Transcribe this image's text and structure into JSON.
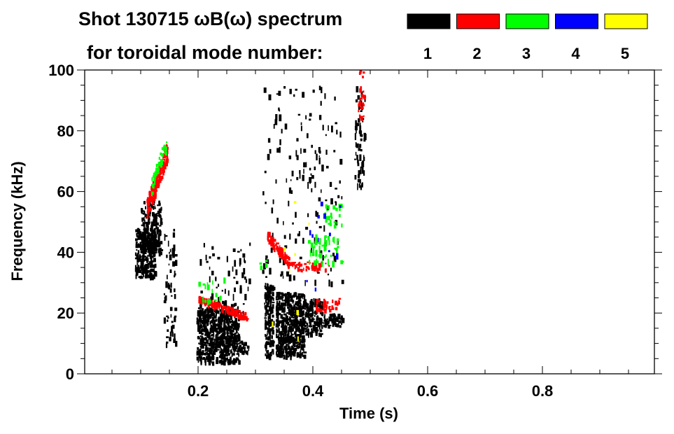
{
  "chart_data": {
    "type": "heatmap",
    "title": "Shot 130715 ωB(ω) spectrum",
    "legend_title": "for toroidal mode number:",
    "legend": [
      {
        "label": "1",
        "color": "#000000"
      },
      {
        "label": "2",
        "color": "#ff0000"
      },
      {
        "label": "3",
        "color": "#00ff00"
      },
      {
        "label": "4",
        "color": "#0000ff"
      },
      {
        "label": "5",
        "color": "#ffff00"
      }
    ],
    "xlabel": "Time (s)",
    "ylabel": "Frequency (kHz)",
    "xlim": [
      0,
      1.0
    ],
    "ylim": [
      0,
      100
    ],
    "xticks": [
      0.2,
      0.4,
      0.6,
      0.8
    ],
    "xtick_labels": [
      "0.2",
      "0.4",
      "0.6",
      "0.8"
    ],
    "yticks": [
      0,
      20,
      40,
      60,
      80,
      100
    ],
    "ytick_labels": [
      "0",
      "20",
      "40",
      "60",
      "80",
      "100"
    ],
    "legend_placement": "top-right",
    "regions": [
      {
        "mode": 1,
        "t": [
          0.09,
          0.125
        ],
        "f": [
          32,
          48
        ],
        "density": 0.9
      },
      {
        "mode": 1,
        "t": [
          0.1,
          0.135
        ],
        "f": [
          40,
          57
        ],
        "density": 0.6
      },
      {
        "mode": 1,
        "t": [
          0.14,
          0.16
        ],
        "f": [
          10,
          50
        ],
        "density": 0.12
      },
      {
        "mode": 1,
        "t": [
          0.197,
          0.27
        ],
        "f": [
          4,
          22
        ],
        "density": 0.9
      },
      {
        "mode": 1,
        "t": [
          0.27,
          0.288
        ],
        "f": [
          7,
          11
        ],
        "density": 0.7
      },
      {
        "mode": 1,
        "t": [
          0.2,
          0.29
        ],
        "f": [
          18,
          45
        ],
        "density": 0.05
      },
      {
        "mode": 1,
        "t": [
          0.315,
          0.33
        ],
        "f": [
          6,
          30
        ],
        "density": 0.75
      },
      {
        "mode": 1,
        "t": [
          0.335,
          0.385
        ],
        "f": [
          6,
          27
        ],
        "density": 0.95
      },
      {
        "mode": 1,
        "t": [
          0.385,
          0.415
        ],
        "f": [
          13,
          25
        ],
        "density": 0.75
      },
      {
        "mode": 1,
        "t": [
          0.415,
          0.452
        ],
        "f": [
          16,
          20
        ],
        "density": 0.8
      },
      {
        "mode": 1,
        "t": [
          0.31,
          0.45
        ],
        "f": [
          30,
          95
        ],
        "density": 0.03
      },
      {
        "mode": 1,
        "t": [
          0.472,
          0.49
        ],
        "f": [
          62,
          95
        ],
        "density": 0.18
      },
      {
        "mode": 2,
        "t": [
          0.11,
          0.145
        ],
        "f": [
          55,
          73
        ],
        "density": 0.55,
        "slope": 1
      },
      {
        "mode": 2,
        "t": [
          0.2,
          0.285
        ],
        "f": [
          19,
          25
        ],
        "density": 0.45,
        "slope": -1
      },
      {
        "mode": 2,
        "t": [
          0.32,
          0.36
        ],
        "f": [
          36,
          46
        ],
        "density": 0.5,
        "slope": -1
      },
      {
        "mode": 2,
        "t": [
          0.36,
          0.435
        ],
        "f": [
          34.5,
          37
        ],
        "density": 0.45
      },
      {
        "mode": 2,
        "t": [
          0.405,
          0.445
        ],
        "f": [
          21,
          25
        ],
        "density": 0.4
      },
      {
        "mode": 2,
        "t": [
          0.478,
          0.488
        ],
        "f": [
          84,
          100
        ],
        "density": 0.3
      },
      {
        "mode": 3,
        "t": [
          0.118,
          0.145
        ],
        "f": [
          62,
          77
        ],
        "density": 0.2,
        "slope": 1
      },
      {
        "mode": 3,
        "t": [
          0.2,
          0.245
        ],
        "f": [
          24,
          32
        ],
        "density": 0.08
      },
      {
        "mode": 3,
        "t": [
          0.39,
          0.45
        ],
        "f": [
          37,
          46
        ],
        "density": 0.15
      },
      {
        "mode": 3,
        "t": [
          0.42,
          0.45
        ],
        "f": [
          49,
          56
        ],
        "density": 0.2
      },
      {
        "mode": 3,
        "t": [
          0.3,
          0.33
        ],
        "f": [
          35,
          38
        ],
        "density": 0.1
      },
      {
        "mode": 4,
        "t": [
          0.38,
          0.45
        ],
        "f": [
          28,
          60
        ],
        "density": 0.01
      },
      {
        "mode": 5,
        "t": [
          0.32,
          0.43
        ],
        "f": [
          2,
          60
        ],
        "density": 0.002
      }
    ]
  }
}
